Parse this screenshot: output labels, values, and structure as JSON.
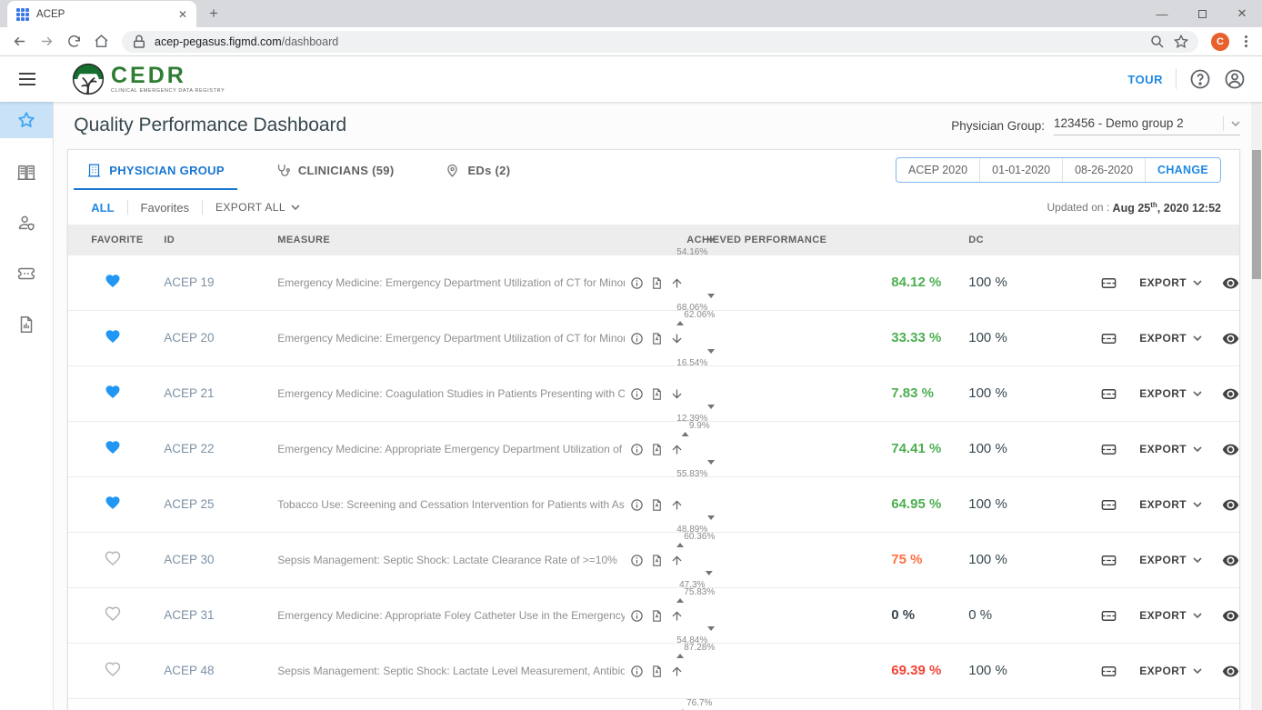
{
  "browser": {
    "tab_title": "ACEP",
    "url_host": "acep-pegasus.figmd.com",
    "url_path": "/dashboard",
    "avatar_letter": "C",
    "avatar_color": "#e8612c"
  },
  "header": {
    "logo_title": "CEDR",
    "logo_subtitle": "CLINICAL EMERGENCY DATA REGISTRY",
    "tour": "TOUR"
  },
  "page": {
    "title": "Quality Performance Dashboard",
    "physician_group_label": "Physician Group:",
    "physician_group_value": "123456 - Demo group 2"
  },
  "tabs": [
    {
      "label": "PHYSICIAN GROUP",
      "active": true
    },
    {
      "label": "CLINICIANS (59)",
      "active": false
    },
    {
      "label": "EDs (2)",
      "active": false
    }
  ],
  "period": {
    "program": "ACEP 2020",
    "start_date": "01-01-2020",
    "end_date": "08-26-2020",
    "change": "CHANGE"
  },
  "filters": {
    "all": "ALL",
    "favorites": "Favorites",
    "export_all": "EXPORT ALL"
  },
  "updated": {
    "label": "Updated on :",
    "date_main": "Aug 25",
    "date_sup": "th",
    "date_tail": ", 2020 12:52"
  },
  "table": {
    "columns": {
      "favorite": "FAVORITE",
      "id": "ID",
      "measure": "MEASURE",
      "achieved": "ACHIEVED PERFORMANCE",
      "dc": "DC"
    },
    "export_label": "EXPORT",
    "rows": [
      {
        "favorite": true,
        "id": "ACEP 19",
        "measure": "Emergency Medicine: Emergency Department Utilization of CT for Minor...",
        "trend": "up",
        "bar": {
          "value": 84.12,
          "color": "green",
          "top_marker": {
            "label": "54.16%",
            "pos": 54.16
          },
          "bottom_marker": {
            "label": "62.06%",
            "pos": 62.06
          }
        },
        "achieved": "84.12 %",
        "achieved_color": "green",
        "dc": "100 %"
      },
      {
        "favorite": true,
        "id": "ACEP 20",
        "measure": "Emergency Medicine: Emergency Department Utilization of CT for Minor...",
        "trend": "down",
        "bar": {
          "value": 33.33,
          "color": "green",
          "top_marker": {
            "label": "68.06%",
            "pos": 68.06
          },
          "bottom_marker": null
        },
        "achieved": "33.33 %",
        "achieved_color": "green",
        "dc": "100 %"
      },
      {
        "favorite": true,
        "id": "ACEP 21",
        "measure": "Emergency Medicine: Coagulation Studies in Patients Presenting with C...",
        "trend": "down",
        "bar": {
          "value": 7.83,
          "color": "green",
          "top_marker": {
            "label": "16.54%",
            "pos": 16.54
          },
          "bottom_marker": {
            "label": "9.9%",
            "pos": 9.9
          }
        },
        "achieved": "7.83 %",
        "achieved_color": "green",
        "dc": "100 %"
      },
      {
        "favorite": true,
        "id": "ACEP 22",
        "measure": "Emergency Medicine: Appropriate Emergency Department Utilization of ...",
        "trend": "up",
        "bar": {
          "value": 74.41,
          "color": "green",
          "top_marker": {
            "label": "12.39%",
            "pos": 12.39
          },
          "bottom_marker": null
        },
        "achieved": "74.41 %",
        "achieved_color": "green",
        "dc": "100 %"
      },
      {
        "favorite": true,
        "id": "ACEP 25",
        "measure": "Tobacco Use: Screening and Cessation Intervention for Patients with As...",
        "trend": "up",
        "bar": {
          "value": 64.95,
          "color": "green",
          "top_marker": {
            "label": "55.83%",
            "pos": 55.83
          },
          "bottom_marker": {
            "label": "60.36%",
            "pos": 60.36
          }
        },
        "achieved": "64.95 %",
        "achieved_color": "green",
        "dc": "100 %"
      },
      {
        "favorite": false,
        "id": "ACEP 30",
        "measure": "Sepsis Management: Septic Shock: Lactate Clearance Rate of >=10%",
        "trend": "up",
        "bar": {
          "value": 75,
          "color": "orange",
          "top_marker": {
            "label": "48.89%",
            "pos": 48.89
          },
          "bottom_marker": {
            "label": "75.83%",
            "pos": 75.83
          }
        },
        "achieved": "75 %",
        "achieved_color": "orange",
        "dc": "100 %"
      },
      {
        "favorite": false,
        "id": "ACEP 31",
        "measure": "Emergency Medicine: Appropriate Foley Catheter Use in the Emergency ...",
        "trend": "up",
        "bar": {
          "value": 0,
          "color": "none",
          "top_marker": {
            "label": "47.3%",
            "pos": 47.3
          },
          "bottom_marker": {
            "label": "87.28%",
            "pos": 87.28
          }
        },
        "achieved": "0 %",
        "achieved_color": "dark",
        "dc": "0 %"
      },
      {
        "favorite": false,
        "id": "ACEP 48",
        "measure": "Sepsis Management: Septic Shock: Lactate Level Measurement, Antibio...",
        "trend": "up",
        "bar": {
          "value": 69.39,
          "color": "red",
          "top_marker": {
            "label": "54.84%",
            "pos": 54.84
          },
          "bottom_marker": {
            "label": "76.7%",
            "pos": 76.7
          }
        },
        "achieved": "69.39 %",
        "achieved_color": "red",
        "dc": "100 %"
      }
    ]
  },
  "colors": {
    "accent_blue": "#1e88e5",
    "green": "#4caf50",
    "orange": "#ff7043",
    "red": "#f44336",
    "heart_blue": "#2196f3"
  }
}
